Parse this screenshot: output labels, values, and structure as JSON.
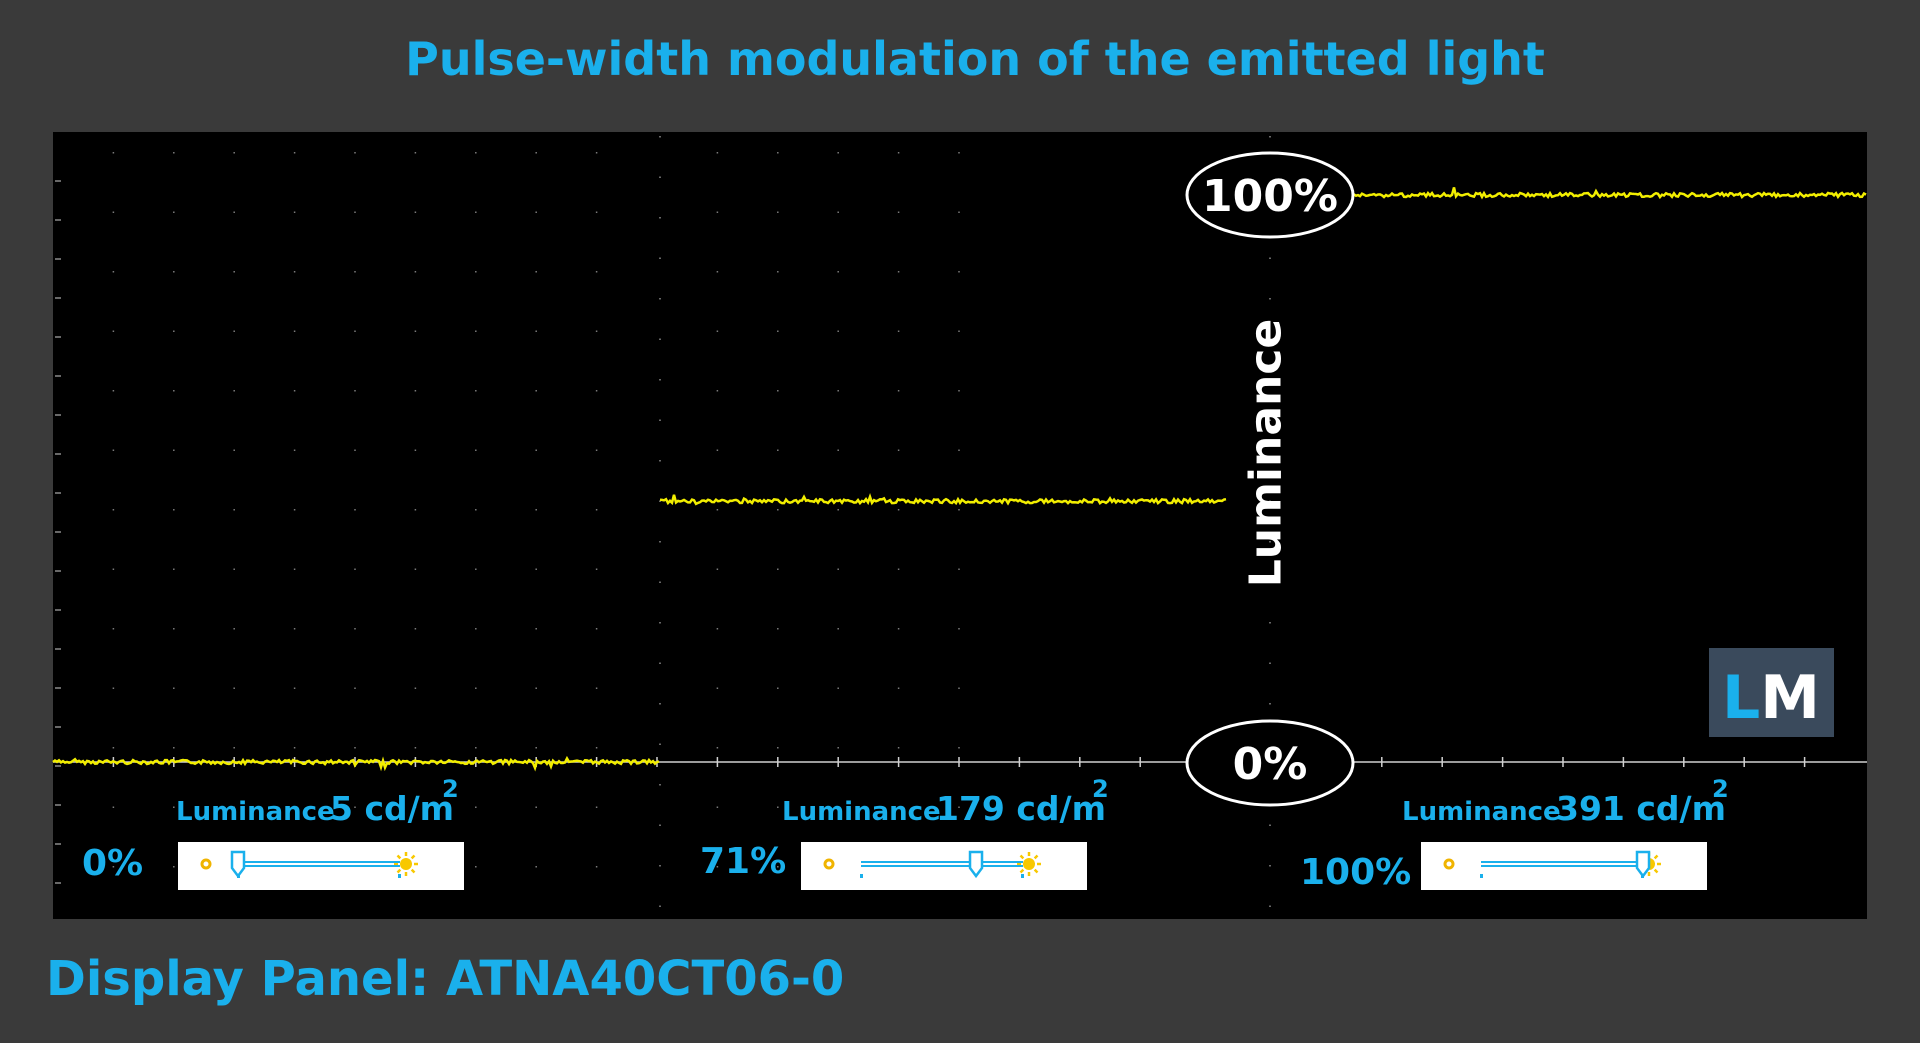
{
  "title": "Pulse-width modulation of the emitted light",
  "footer": "Display Panel: ATNA40CT06-0",
  "logo_text": "LM",
  "colors": {
    "background": "#3a3a3a",
    "plot_background": "#000000",
    "accent": "#1ab0ec",
    "trace": "#f2ee00",
    "logo_bg": "#3a4a5c",
    "logo_l": "#1ab0ec",
    "logo_m": "#ffffff"
  },
  "chart_data": {
    "type": "line",
    "title": "Pulse-width modulation of the emitted light",
    "ylabel": "Luminance",
    "y_reference_labels": [
      "100%",
      "0%"
    ],
    "ylim": [
      0,
      100
    ],
    "grid": true,
    "segments": [
      {
        "brightness": "0%",
        "luminance_label": "Luminance",
        "luminance_value": "5 cd/m",
        "unit_superscript": "2",
        "relative_luminance": 0,
        "slider_position": 0.0
      },
      {
        "brightness": "71%",
        "luminance_label": "Luminance",
        "luminance_value": "179 cd/m",
        "unit_superscript": "2",
        "relative_luminance": 46,
        "slider_position": 0.71
      },
      {
        "brightness": "100%",
        "luminance_label": "Luminance",
        "luminance_value": "391 cd/m",
        "unit_superscript": "2",
        "relative_luminance": 100,
        "slider_position": 1.0
      }
    ]
  }
}
